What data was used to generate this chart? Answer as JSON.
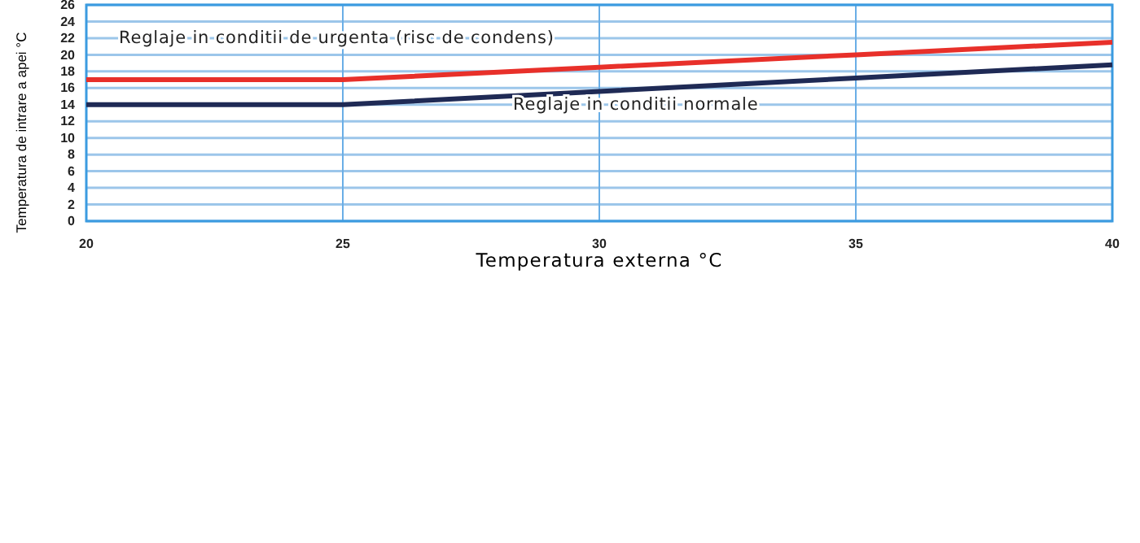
{
  "chart_data": {
    "type": "line",
    "xlabel": "Temperatura externa    °C",
    "ylabel": "Temperatura de intrare a apei   °C",
    "x": [
      20,
      25,
      30,
      35,
      40
    ],
    "series": [
      {
        "name": "Reglaje in conditii de urgenta (risc de condens)",
        "color": "#e8302a",
        "values": [
          17,
          17,
          18.5,
          20,
          21.5
        ]
      },
      {
        "name": "Reglaje in conditii normale",
        "color": "#1f2a55",
        "values": [
          14,
          14,
          15.6,
          17.2,
          18.8
        ]
      }
    ],
    "xlim": [
      20,
      40
    ],
    "xticks": [
      20,
      25,
      30,
      35,
      40
    ],
    "ylim": [
      0,
      26
    ],
    "yticks": [
      0,
      2,
      4,
      6,
      8,
      10,
      12,
      14,
      16,
      18,
      20,
      22,
      24,
      26
    ],
    "grid": true,
    "marker": "none",
    "line_style": "solid"
  }
}
